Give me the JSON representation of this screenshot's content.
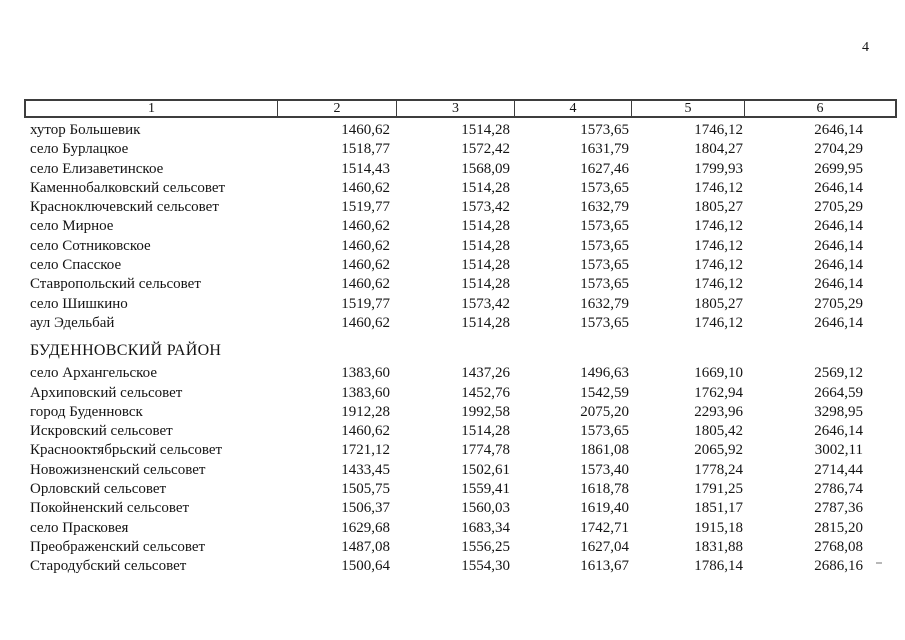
{
  "page": {
    "number": "4"
  },
  "table": {
    "headers": [
      "1",
      "2",
      "3",
      "4",
      "5",
      "6"
    ],
    "sections": [
      {
        "title": "",
        "rows": [
          [
            "хутор Большевик",
            "1460,62",
            "1514,28",
            "1573,65",
            "1746,12",
            "2646,14"
          ],
          [
            "село Бурлацкое",
            "1518,77",
            "1572,42",
            "1631,79",
            "1804,27",
            "2704,29"
          ],
          [
            "село Елизаветинское",
            "1514,43",
            "1568,09",
            "1627,46",
            "1799,93",
            "2699,95"
          ],
          [
            "Каменнобалковский сельсовет",
            "1460,62",
            "1514,28",
            "1573,65",
            "1746,12",
            "2646,14"
          ],
          [
            "Красноключевский сельсовет",
            "1519,77",
            "1573,42",
            "1632,79",
            "1805,27",
            "2705,29"
          ],
          [
            "село Мирное",
            "1460,62",
            "1514,28",
            "1573,65",
            "1746,12",
            "2646,14"
          ],
          [
            "село Сотниковское",
            "1460,62",
            "1514,28",
            "1573,65",
            "1746,12",
            "2646,14"
          ],
          [
            "село Спасское",
            "1460,62",
            "1514,28",
            "1573,65",
            "1746,12",
            "2646,14"
          ],
          [
            "Ставропольский сельсовет",
            "1460,62",
            "1514,28",
            "1573,65",
            "1746,12",
            "2646,14"
          ],
          [
            "село Шишкино",
            "1519,77",
            "1573,42",
            "1632,79",
            "1805,27",
            "2705,29"
          ],
          [
            "аул Эдельбай",
            "1460,62",
            "1514,28",
            "1573,65",
            "1746,12",
            "2646,14"
          ]
        ]
      },
      {
        "title": "БУДЕННОВСКИЙ РАЙОН",
        "rows": [
          [
            "село Архангельское",
            "1383,60",
            "1437,26",
            "1496,63",
            "1669,10",
            "2569,12"
          ],
          [
            "Архиповский сельсовет",
            "1383,60",
            "1452,76",
            "1542,59",
            "1762,94",
            "2664,59"
          ],
          [
            "город Буденновск",
            "1912,28",
            "1992,58",
            "2075,20",
            "2293,96",
            "3298,95"
          ],
          [
            "Искровский сельсовет",
            "1460,62",
            "1514,28",
            "1573,65",
            "1805,42",
            "2646,14"
          ],
          [
            "Краснооктябрьский сельсовет",
            "1721,12",
            "1774,78",
            "1861,08",
            "2065,92",
            "3002,11"
          ],
          [
            "Новожизненский сельсовет",
            "1433,45",
            "1502,61",
            "1573,40",
            "1778,24",
            "2714,44"
          ],
          [
            "Орловский сельсовет",
            "1505,75",
            "1559,41",
            "1618,78",
            "1791,25",
            "2786,74"
          ],
          [
            "Покойненский сельсовет",
            "1506,37",
            "1560,03",
            "1619,40",
            "1851,17",
            "2787,36"
          ],
          [
            "село Прасковея",
            "1629,68",
            "1683,34",
            "1742,71",
            "1915,18",
            "2815,20"
          ],
          [
            "Преображенский сельсовет",
            "1487,08",
            "1556,25",
            "1627,04",
            "1831,88",
            "2768,08"
          ],
          [
            "Стародубский сельсовет",
            "1500,64",
            "1554,30",
            "1613,67",
            "1786,14",
            "2686,16"
          ]
        ]
      }
    ]
  }
}
